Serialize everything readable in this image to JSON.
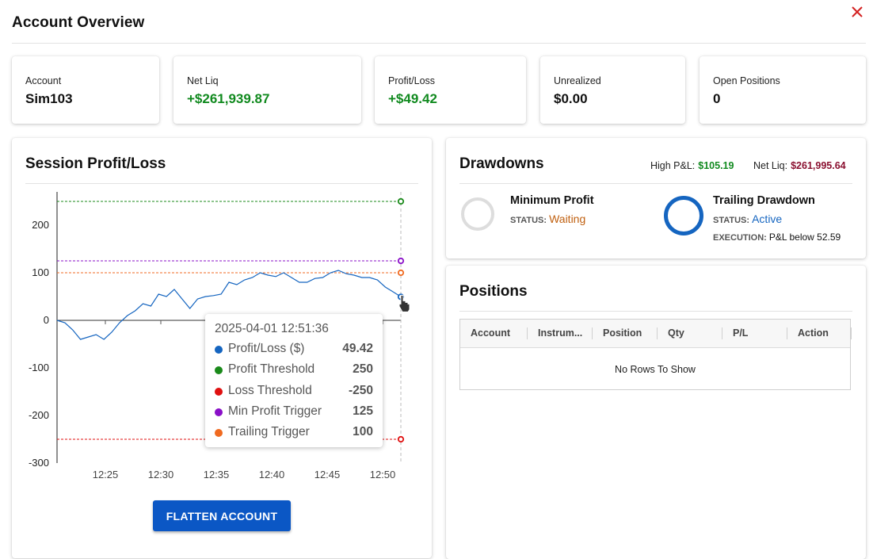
{
  "header": {
    "title": "Account Overview"
  },
  "stats": [
    {
      "label": "Account",
      "value": "Sim103",
      "positive": false
    },
    {
      "label": "Net Liq",
      "value": "+$261,939.87",
      "positive": true
    },
    {
      "label": "Profit/Loss",
      "value": "+$49.42",
      "positive": true
    },
    {
      "label": "Unrealized",
      "value": "$0.00",
      "positive": false
    },
    {
      "label": "Open Positions",
      "value": "0",
      "positive": false
    }
  ],
  "session": {
    "title": "Session Profit/Loss",
    "flatten_label": "FLATTEN ACCOUNT"
  },
  "chart_data": {
    "type": "line",
    "xlabel": "",
    "ylabel": "",
    "ylim": [
      -300,
      270
    ],
    "yticks": [
      200,
      100,
      0,
      -100,
      -200,
      -300
    ],
    "xticks": [
      "12:25",
      "12:30",
      "12:35",
      "12:40",
      "12:45",
      "12:50"
    ],
    "series": [
      {
        "name": "Profit/Loss ($)",
        "color": "#1565c0",
        "style": "solid",
        "values": [
          0,
          -5,
          -20,
          -40,
          -35,
          -30,
          -40,
          -25,
          -5,
          10,
          20,
          35,
          30,
          55,
          50,
          65,
          45,
          25,
          45,
          50,
          52,
          55,
          80,
          75,
          85,
          90,
          100,
          95,
          92,
          100,
          90,
          80,
          80,
          88,
          90,
          100,
          105,
          98,
          95,
          90,
          90,
          85,
          70,
          60,
          49.42
        ]
      },
      {
        "name": "Profit Threshold",
        "color": "#1a8a1a",
        "style": "dashed",
        "values": [
          250
        ]
      },
      {
        "name": "Loss Threshold",
        "color": "#e01010",
        "style": "dashed",
        "values": [
          -250
        ]
      },
      {
        "name": "Min Profit Trigger",
        "color": "#8a10c8",
        "style": "dashed",
        "values": [
          125
        ]
      },
      {
        "name": "Trailing Trigger",
        "color": "#f06a20",
        "style": "dashed",
        "values": [
          100
        ]
      }
    ],
    "tooltip": {
      "time": "2025-04-01 12:51:36",
      "rows": [
        {
          "name": "Profit/Loss ($)",
          "value": "49.42",
          "color": "#1565c0"
        },
        {
          "name": "Profit Threshold",
          "value": "250",
          "color": "#1a8a1a"
        },
        {
          "name": "Loss Threshold",
          "value": "-250",
          "color": "#e01010"
        },
        {
          "name": "Min Profit Trigger",
          "value": "125",
          "color": "#8a10c8"
        },
        {
          "name": "Trailing Trigger",
          "value": "100",
          "color": "#f06a20"
        }
      ]
    }
  },
  "drawdowns": {
    "title": "Drawdowns",
    "high_pl_label": "High P&L:",
    "high_pl_value": "$105.19",
    "netliq_label": "Net Liq:",
    "netliq_value": "$261,995.64",
    "status_label": "STATUS:",
    "execution_label": "EXECUTION:",
    "min_profit": {
      "name": "Minimum Profit",
      "status": "Waiting",
      "color": "#c06010",
      "ring": "#dddddd"
    },
    "trailing": {
      "name": "Trailing Drawdown",
      "status": "Active",
      "color": "#1565c0",
      "ring": "#1565c0",
      "execution": "P&L below 52.59"
    }
  },
  "positions": {
    "title": "Positions",
    "columns": [
      "Account",
      "Instrum...",
      "Position",
      "Qty",
      "P/L",
      "Action"
    ],
    "empty_text": "No Rows To Show"
  },
  "colors": {
    "positive": "#118a1f",
    "accent": "#0b57c5",
    "netliq_highlight": "#8a1030"
  }
}
